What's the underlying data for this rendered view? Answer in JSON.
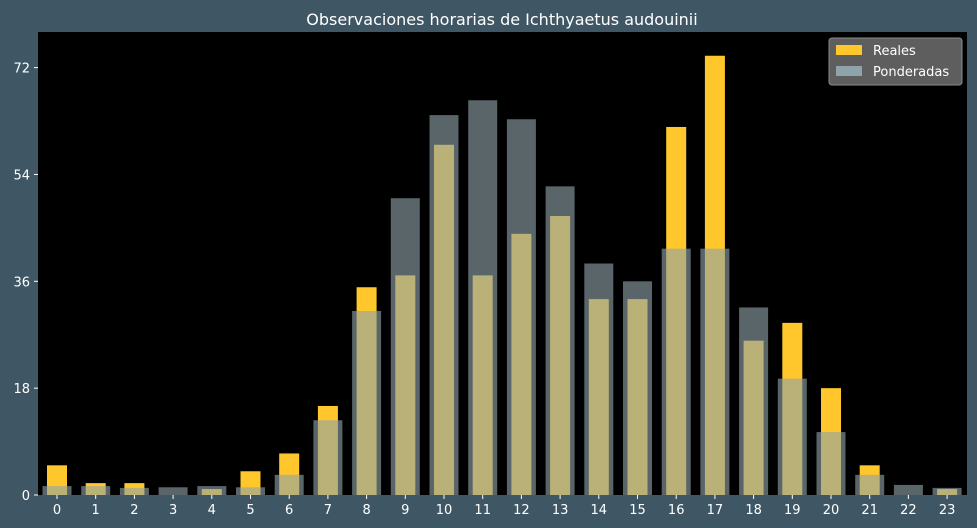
{
  "chart_data": {
    "type": "bar",
    "title": "Observaciones horarias de Ichthyaetus audouinii",
    "xlabel": "",
    "ylabel": "",
    "categories": [
      "0",
      "1",
      "2",
      "3",
      "4",
      "5",
      "6",
      "7",
      "8",
      "9",
      "10",
      "11",
      "12",
      "13",
      "14",
      "15",
      "16",
      "17",
      "18",
      "19",
      "20",
      "21",
      "22",
      "23"
    ],
    "ylim": [
      0,
      78
    ],
    "yticks": [
      0,
      18,
      36,
      54,
      72
    ],
    "grid": false,
    "legend_position": "top-right",
    "series": [
      {
        "name": "Reales",
        "color": "#ffc72c",
        "values": [
          5,
          2,
          2,
          0,
          1,
          4,
          7,
          15,
          35,
          37,
          59,
          37,
          44,
          47,
          33,
          33,
          62,
          74,
          26,
          29,
          18,
          5,
          0,
          1
        ]
      },
      {
        "name": "Ponderadas",
        "color": "#8fa3aa",
        "values": [
          1.5,
          1.5,
          1.2,
          1.3,
          1.5,
          1.3,
          3.4,
          12.6,
          31,
          50,
          64,
          66.5,
          63.3,
          52,
          39,
          36,
          41.5,
          41.5,
          31.6,
          19.6,
          10.6,
          3.4,
          1.7,
          1.2
        ]
      }
    ]
  }
}
